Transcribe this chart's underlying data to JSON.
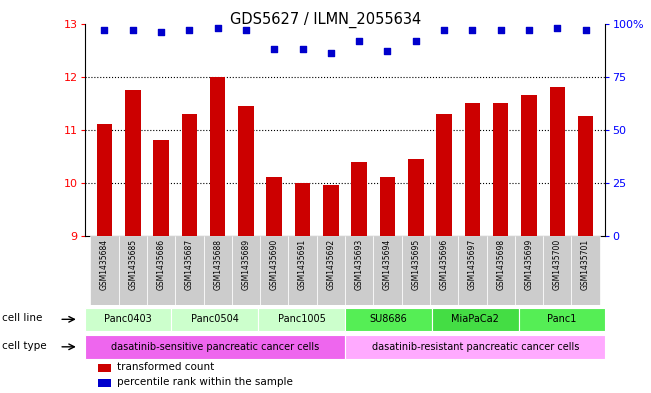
{
  "title": "GDS5627 / ILMN_2055634",
  "samples": [
    "GSM1435684",
    "GSM1435685",
    "GSM1435686",
    "GSM1435687",
    "GSM1435688",
    "GSM1435689",
    "GSM1435690",
    "GSM1435691",
    "GSM1435692",
    "GSM1435693",
    "GSM1435694",
    "GSM1435695",
    "GSM1435696",
    "GSM1435697",
    "GSM1435698",
    "GSM1435699",
    "GSM1435700",
    "GSM1435701"
  ],
  "bar_values": [
    11.1,
    11.75,
    10.8,
    11.3,
    12.0,
    11.45,
    10.1,
    10.0,
    9.95,
    10.4,
    10.1,
    10.45,
    11.3,
    11.5,
    11.5,
    11.65,
    11.8,
    11.25
  ],
  "percentile_values": [
    97,
    97,
    96,
    97,
    98,
    97,
    88,
    88,
    86,
    92,
    87,
    92,
    97,
    97,
    97,
    97,
    98,
    97
  ],
  "ylim_left": [
    9,
    13
  ],
  "ylim_right": [
    0,
    100
  ],
  "yticks_left": [
    9,
    10,
    11,
    12,
    13
  ],
  "yticks_right": [
    0,
    25,
    50,
    75,
    100
  ],
  "bar_color": "#cc0000",
  "dot_color": "#0000cc",
  "cell_lines": [
    {
      "name": "Panc0403",
      "start": 0,
      "end": 3,
      "color": "#ccffcc"
    },
    {
      "name": "Panc0504",
      "start": 3,
      "end": 6,
      "color": "#ccffcc"
    },
    {
      "name": "Panc1005",
      "start": 6,
      "end": 9,
      "color": "#ccffcc"
    },
    {
      "name": "SU8686",
      "start": 9,
      "end": 12,
      "color": "#55ee55"
    },
    {
      "name": "MiaPaCa2",
      "start": 12,
      "end": 15,
      "color": "#44dd44"
    },
    {
      "name": "Panc1",
      "start": 15,
      "end": 18,
      "color": "#55ee55"
    }
  ],
  "cell_types": [
    {
      "name": "dasatinib-sensitive pancreatic cancer cells",
      "start": 0,
      "end": 9,
      "color": "#ee66ee"
    },
    {
      "name": "dasatinib-resistant pancreatic cancer cells",
      "start": 9,
      "end": 18,
      "color": "#ffaaff"
    }
  ],
  "sample_bg_color": "#cccccc",
  "bar_width": 0.55,
  "dotted_grid_lines": [
    10,
    11,
    12
  ],
  "legend_items": [
    {
      "color": "#cc0000",
      "label": "transformed count"
    },
    {
      "color": "#0000cc",
      "label": "percentile rank within the sample"
    }
  ]
}
